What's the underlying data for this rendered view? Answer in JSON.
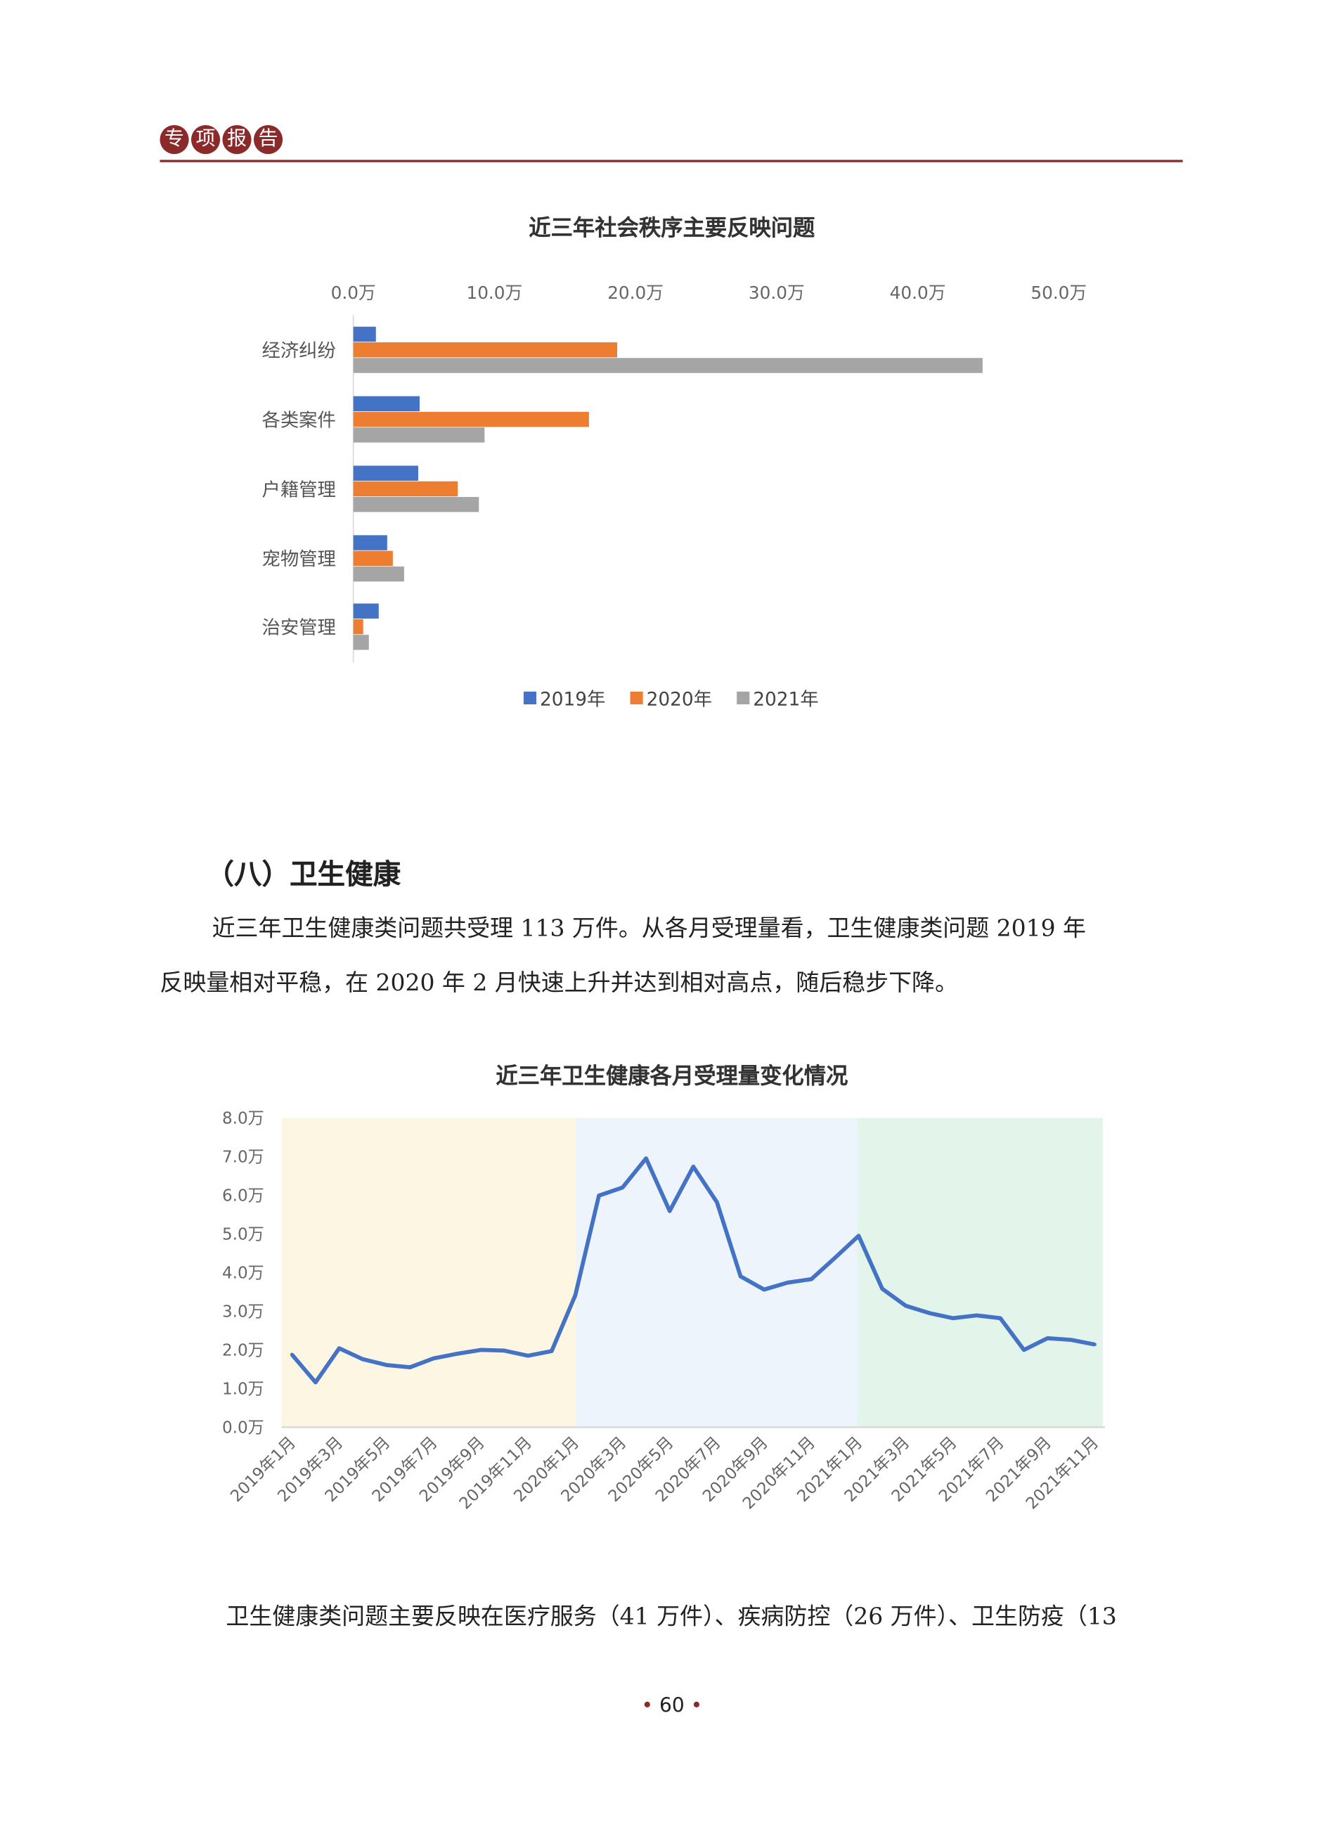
{
  "header": {
    "badges": [
      "专",
      "项",
      "报",
      "告"
    ],
    "accent_color": "#8b2a2a"
  },
  "chart_data": [
    {
      "type": "bar",
      "orientation": "horizontal",
      "title": "近三年社会秩序主要反映问题",
      "categories": [
        "经济纠纷",
        "各类案件",
        "户籍管理",
        "宠物管理",
        "治安管理"
      ],
      "series": [
        {
          "name": "2019年",
          "color": "#4472c4",
          "values": [
            1.6,
            4.7,
            4.6,
            2.4,
            1.8
          ]
        },
        {
          "name": "2020年",
          "color": "#ed7d31",
          "values": [
            18.7,
            16.7,
            7.4,
            2.8,
            0.7
          ]
        },
        {
          "name": "2021年",
          "color": "#a5a5a5",
          "values": [
            44.6,
            9.3,
            8.9,
            3.6,
            1.1
          ]
        }
      ],
      "xlim": [
        0,
        50
      ],
      "xticks": [
        "0.0万",
        "10.0万",
        "20.0万",
        "30.0万",
        "40.0万",
        "50.0万"
      ],
      "unit": "万",
      "grid": false,
      "legend": "bottom"
    },
    {
      "type": "line",
      "title": "近三年卫生健康各月受理量变化情况",
      "x": [
        "2019年1月",
        "2019年2月",
        "2019年3月",
        "2019年4月",
        "2019年5月",
        "2019年6月",
        "2019年7月",
        "2019年8月",
        "2019年9月",
        "2019年10月",
        "2019年11月",
        "2019年12月",
        "2020年1月",
        "2020年2月",
        "2020年3月",
        "2020年4月",
        "2020年5月",
        "2020年6月",
        "2020年7月",
        "2020年8月",
        "2020年9月",
        "2020年10月",
        "2020年11月",
        "2020年12月",
        "2021年1月",
        "2021年2月",
        "2021年3月",
        "2021年4月",
        "2021年5月",
        "2021年6月",
        "2021年7月",
        "2021年8月",
        "2021年9月",
        "2021年10月",
        "2021年11月"
      ],
      "xtick_labels": [
        "2019年1月",
        "2019年3月",
        "2019年5月",
        "2019年7月",
        "2019年9月",
        "2019年11月",
        "2020年1月",
        "2020年3月",
        "2020年5月",
        "2020年7月",
        "2020年9月",
        "2020年11月",
        "2021年1月",
        "2021年3月",
        "2021年5月",
        "2021年7月",
        "2021年9月",
        "2021年11月"
      ],
      "series": [
        {
          "color": "#4472c4",
          "values": [
            1.88,
            1.16,
            2.04,
            1.76,
            1.61,
            1.55,
            1.78,
            1.9,
            2.0,
            1.98,
            1.85,
            1.97,
            3.41,
            5.99,
            6.2,
            6.95,
            5.59,
            6.74,
            5.82,
            3.9,
            3.56,
            3.74,
            3.83,
            4.38,
            4.95,
            3.58,
            3.14,
            2.95,
            2.82,
            2.89,
            2.82,
            2.0,
            2.3,
            2.26,
            2.14
          ]
        }
      ],
      "ylim": [
        0,
        8
      ],
      "yticks": [
        "0.0万",
        "1.0万",
        "2.0万",
        "3.0万",
        "4.0万",
        "5.0万",
        "6.0万",
        "7.0万",
        "8.0万"
      ],
      "background_bands": [
        {
          "year": "2019",
          "color": "#fdf6e2"
        },
        {
          "year": "2020",
          "color": "#eef4fb"
        },
        {
          "year": "2021",
          "color": "#e3f4ea"
        }
      ],
      "grid": false
    }
  ],
  "section": {
    "heading": "（八）卫生健康",
    "para1_line1": "近三年卫生健康类问题共受理 113 万件。从各月受理量看，卫生健康类问题 2019 年",
    "para1_line2": "反映量相对平稳，在 2020 年 2 月快速上升并达到相对高点，随后稳步下降。",
    "para2_line1": "卫生健康类问题主要反映在医疗服务（41 万件）、疾病防控（26 万件）、卫生防疫（13"
  },
  "footer": {
    "page_number": "60"
  }
}
